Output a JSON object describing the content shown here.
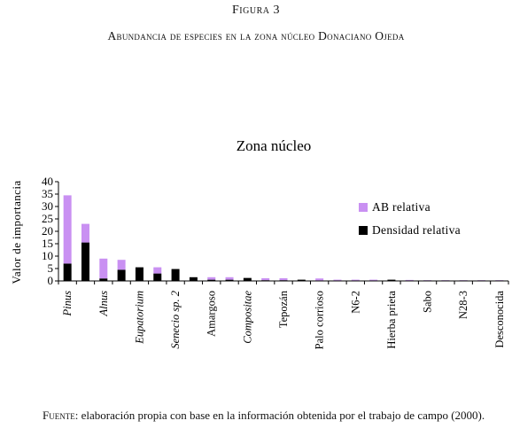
{
  "figure": {
    "label": "Figura 3",
    "title": "Abundancia de especies en la zona núcleo Donaciano Ojeda"
  },
  "source": {
    "lead": "Fuente:",
    "text": " elaboración propia con base en la información obtenida por el trabajo de campo (2000)."
  },
  "colors": {
    "ab": "#c990f2",
    "density": "#000000"
  },
  "chart_data": {
    "type": "bar",
    "stacked": true,
    "title": "Zona núcleo",
    "xlabel": "",
    "ylabel": "Valor de importancia",
    "ylim": [
      0,
      40
    ],
    "yticks": [
      0,
      5,
      10,
      15,
      20,
      25,
      30,
      35,
      40
    ],
    "legend_position": "right",
    "categories": [
      "Pinus",
      "",
      "Alnus",
      "",
      "Eupatorium",
      "",
      "Senecio sp. 2",
      "",
      "Amargoso",
      "",
      "Compositae",
      "",
      "Tepozán",
      "",
      "Palo corrioso",
      "",
      "N6-2",
      "",
      "Hierba prieta",
      "",
      "Sabo",
      "",
      "N28-3",
      "",
      "Desconocida"
    ],
    "italic_labels": [
      "Pinus",
      "Alnus",
      "Eupatorium",
      "Senecio sp. 2",
      "Compositae"
    ],
    "series": [
      {
        "name": "Densidad relativa",
        "values": [
          7,
          15.5,
          1,
          4.5,
          5.5,
          3,
          4.8,
          1.5,
          0.5,
          0.5,
          1.2,
          0.3,
          0.3,
          0.5,
          0.2,
          0.2,
          0.2,
          0.2,
          0.5,
          0.2,
          0.2,
          0.2,
          0.2,
          0.2,
          0.2
        ]
      },
      {
        "name": "AB relativa",
        "values": [
          27.5,
          7.5,
          8,
          4,
          0,
          2.5,
          0,
          0,
          1,
          1,
          0,
          0.8,
          0.8,
          0,
          0.8,
          0.3,
          0.3,
          0.3,
          0,
          0.2,
          0.1,
          0.1,
          0.1,
          0.1,
          0.1
        ]
      }
    ]
  }
}
